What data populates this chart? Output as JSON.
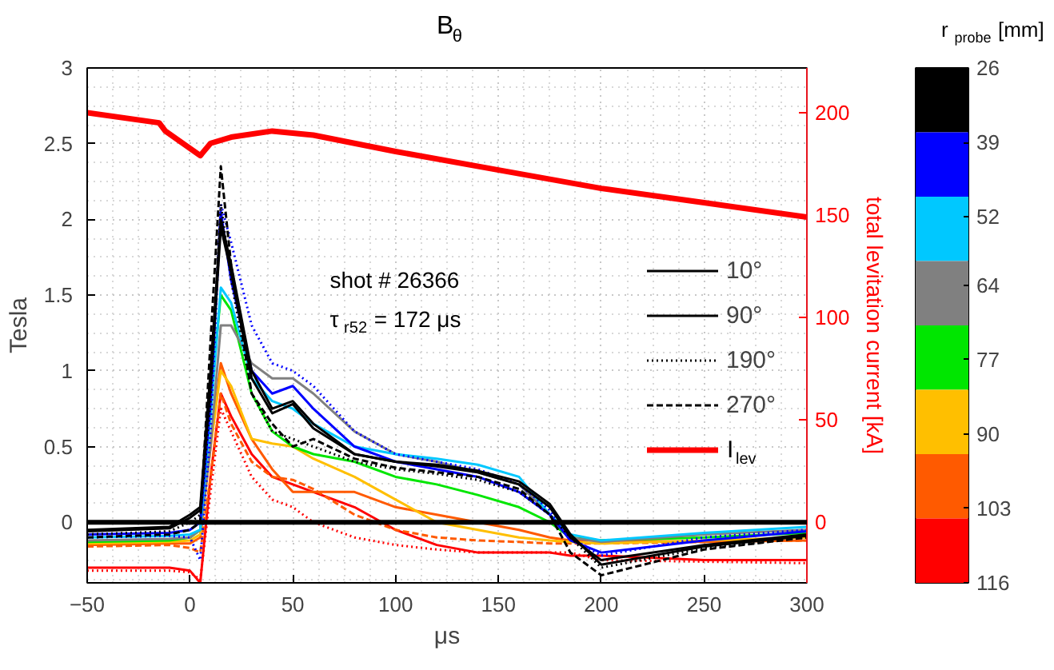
{
  "chart_data": {
    "type": "line",
    "title": "B$_{θ}$",
    "xlabel": "μs",
    "ylabel": "Tesla",
    "y2label": "total levitation current [kA]",
    "clabel": "r$_{probe}$ [mm]",
    "annotations": [
      "shot # 26366",
      "τ$_{r52}$ = 172 μs"
    ],
    "x": [
      -50,
      -10,
      0,
      5,
      10,
      15,
      20,
      30,
      40,
      50,
      60,
      80,
      100,
      120,
      140,
      160,
      175,
      185,
      200,
      250,
      300
    ],
    "xlim": [
      -50,
      300
    ],
    "xticks": [
      -50,
      0,
      50,
      100,
      150,
      200,
      250,
      300
    ],
    "ylim": [
      -0.4,
      3
    ],
    "yticks": [
      0,
      0.5,
      1,
      1.5,
      2,
      2.5,
      3
    ],
    "y2lim": [
      -29.6,
      221.8
    ],
    "y2ticks": [
      0,
      50,
      100,
      150,
      200
    ],
    "clim": [
      26,
      116
    ],
    "cticks": [
      26,
      39,
      52,
      64,
      77,
      90,
      103,
      116
    ],
    "colors": [
      "#000000",
      "#0000ff",
      "#00c8ff",
      "#808080",
      "#00e600",
      "#ffbf00",
      "#ff5a00",
      "#ff0000"
    ],
    "grid": true,
    "legend": "right",
    "ref_lines": [
      {
        "axis": "y",
        "value": 0,
        "color": "#000000"
      }
    ],
    "series": [
      {
        "color": "#ff0000",
        "line_style": "dotted",
        "values": [
          -0.32,
          -0.32,
          -0.33,
          -0.38,
          0.2,
          0.75,
          0.6,
          0.3,
          0.15,
          0.1,
          0.0,
          -0.1,
          -0.15,
          -0.18,
          -0.2,
          -0.2,
          -0.2,
          -0.2,
          -0.25,
          -0.26,
          -0.27
        ]
      },
      {
        "color": "#ff0000",
        "line_style": "solid",
        "values": [
          -0.3,
          -0.3,
          -0.32,
          -0.4,
          0.3,
          0.85,
          0.7,
          0.45,
          0.3,
          0.25,
          0.2,
          0.1,
          -0.05,
          -0.15,
          -0.2,
          -0.2,
          -0.2,
          -0.22,
          -0.22,
          -0.25,
          -0.25
        ]
      },
      {
        "color": "#ff5a00",
        "line_style": "dashed",
        "values": [
          -0.16,
          -0.15,
          -0.17,
          -0.2,
          0.3,
          0.85,
          0.65,
          0.4,
          0.3,
          0.28,
          0.22,
          0.05,
          -0.05,
          -0.1,
          -0.12,
          -0.13,
          -0.14,
          -0.14,
          -0.14,
          -0.13,
          -0.12
        ]
      },
      {
        "color": "#ff5a00",
        "line_style": "solid",
        "values": [
          -0.15,
          -0.14,
          -0.14,
          -0.1,
          0.5,
          1.05,
          0.85,
          0.55,
          0.35,
          0.2,
          0.2,
          0.2,
          0.1,
          0.05,
          0.0,
          -0.05,
          -0.1,
          -0.12,
          -0.12,
          -0.13,
          -0.12
        ]
      },
      {
        "color": "#ffbf00",
        "line_style": "solid",
        "values": [
          -0.14,
          -0.13,
          -0.12,
          -0.08,
          0.5,
          1.0,
          0.9,
          0.55,
          0.52,
          0.5,
          0.42,
          0.3,
          0.15,
          0.0,
          -0.05,
          -0.1,
          -0.12,
          -0.13,
          -0.14,
          -0.12,
          -0.1
        ]
      },
      {
        "color": "#00e600",
        "line_style": "solid",
        "values": [
          -0.13,
          -0.12,
          -0.1,
          -0.05,
          0.8,
          1.5,
          1.4,
          0.85,
          0.6,
          0.5,
          0.45,
          0.4,
          0.3,
          0.25,
          0.18,
          0.1,
          0.0,
          -0.1,
          -0.12,
          -0.1,
          -0.07
        ]
      },
      {
        "color": "#808080",
        "line_style": "solid",
        "values": [
          -0.12,
          -0.11,
          -0.1,
          -0.05,
          0.5,
          1.3,
          1.3,
          1.05,
          0.95,
          0.95,
          0.85,
          0.6,
          0.45,
          0.4,
          0.33,
          0.25,
          0.05,
          -0.1,
          -0.13,
          -0.08,
          -0.05
        ]
      },
      {
        "color": "#00c8ff",
        "line_style": "solid",
        "values": [
          -0.1,
          -0.09,
          -0.08,
          -0.05,
          0.7,
          1.55,
          1.45,
          0.95,
          0.8,
          0.75,
          0.65,
          0.5,
          0.45,
          0.42,
          0.38,
          0.3,
          0.05,
          -0.08,
          -0.12,
          -0.07,
          -0.03
        ]
      },
      {
        "color": "#0000ff",
        "line_style": "dotted",
        "values": [
          -0.1,
          -0.09,
          -0.1,
          -0.25,
          0.6,
          2.1,
          1.85,
          1.3,
          1.05,
          1.0,
          0.9,
          0.6,
          0.45,
          0.4,
          0.35,
          0.25,
          0.08,
          -0.1,
          -0.22,
          -0.1,
          -0.05
        ]
      },
      {
        "color": "#0000ff",
        "line_style": "solid",
        "values": [
          -0.08,
          -0.07,
          -0.05,
          0.0,
          0.8,
          2.05,
          1.6,
          1.0,
          0.85,
          0.9,
          0.75,
          0.5,
          0.4,
          0.35,
          0.3,
          0.2,
          0.05,
          -0.12,
          -0.2,
          -0.12,
          -0.06
        ]
      },
      {
        "name": "10°",
        "color": "#000000",
        "line_style": "solid",
        "values": [
          -0.05,
          -0.03,
          0.05,
          0.1,
          1.0,
          2.0,
          1.7,
          1.0,
          0.75,
          0.8,
          0.65,
          0.45,
          0.4,
          0.37,
          0.33,
          0.25,
          0.1,
          -0.1,
          -0.25,
          -0.15,
          -0.08
        ]
      },
      {
        "name": "90°",
        "color": "#000000",
        "line_style": "solid",
        "values": [
          -0.06,
          -0.04,
          0.03,
          0.08,
          0.9,
          1.95,
          1.65,
          0.95,
          0.72,
          0.78,
          0.62,
          0.45,
          0.4,
          0.38,
          0.34,
          0.27,
          0.12,
          -0.08,
          -0.28,
          -0.16,
          -0.09
        ]
      },
      {
        "name": "190°",
        "color": "#000000",
        "line_style": "dotted",
        "values": [
          -0.08,
          -0.06,
          0.0,
          0.05,
          0.8,
          2.1,
          1.6,
          0.85,
          0.6,
          0.55,
          0.5,
          0.4,
          0.35,
          0.32,
          0.28,
          0.2,
          0.05,
          -0.1,
          -0.3,
          -0.17,
          -0.1
        ]
      },
      {
        "name": "270°",
        "color": "#000000",
        "line_style": "dashed",
        "values": [
          -0.1,
          -0.08,
          -0.05,
          0.0,
          1.2,
          2.35,
          1.7,
          0.85,
          0.65,
          0.5,
          0.55,
          0.42,
          0.36,
          0.33,
          0.3,
          0.22,
          0.05,
          -0.2,
          -0.35,
          -0.18,
          -0.1
        ]
      },
      {
        "name": "I$_{lev}$",
        "color": "#ff0000",
        "line_style": "solid",
        "axis": "y2",
        "x": [
          -50,
          -15,
          -12,
          5,
          10,
          20,
          40,
          60,
          100,
          150,
          200,
          250,
          300
        ],
        "values": [
          200,
          195,
          191,
          179,
          185,
          188,
          191,
          189,
          181,
          172,
          163,
          156,
          149
        ]
      }
    ]
  }
}
